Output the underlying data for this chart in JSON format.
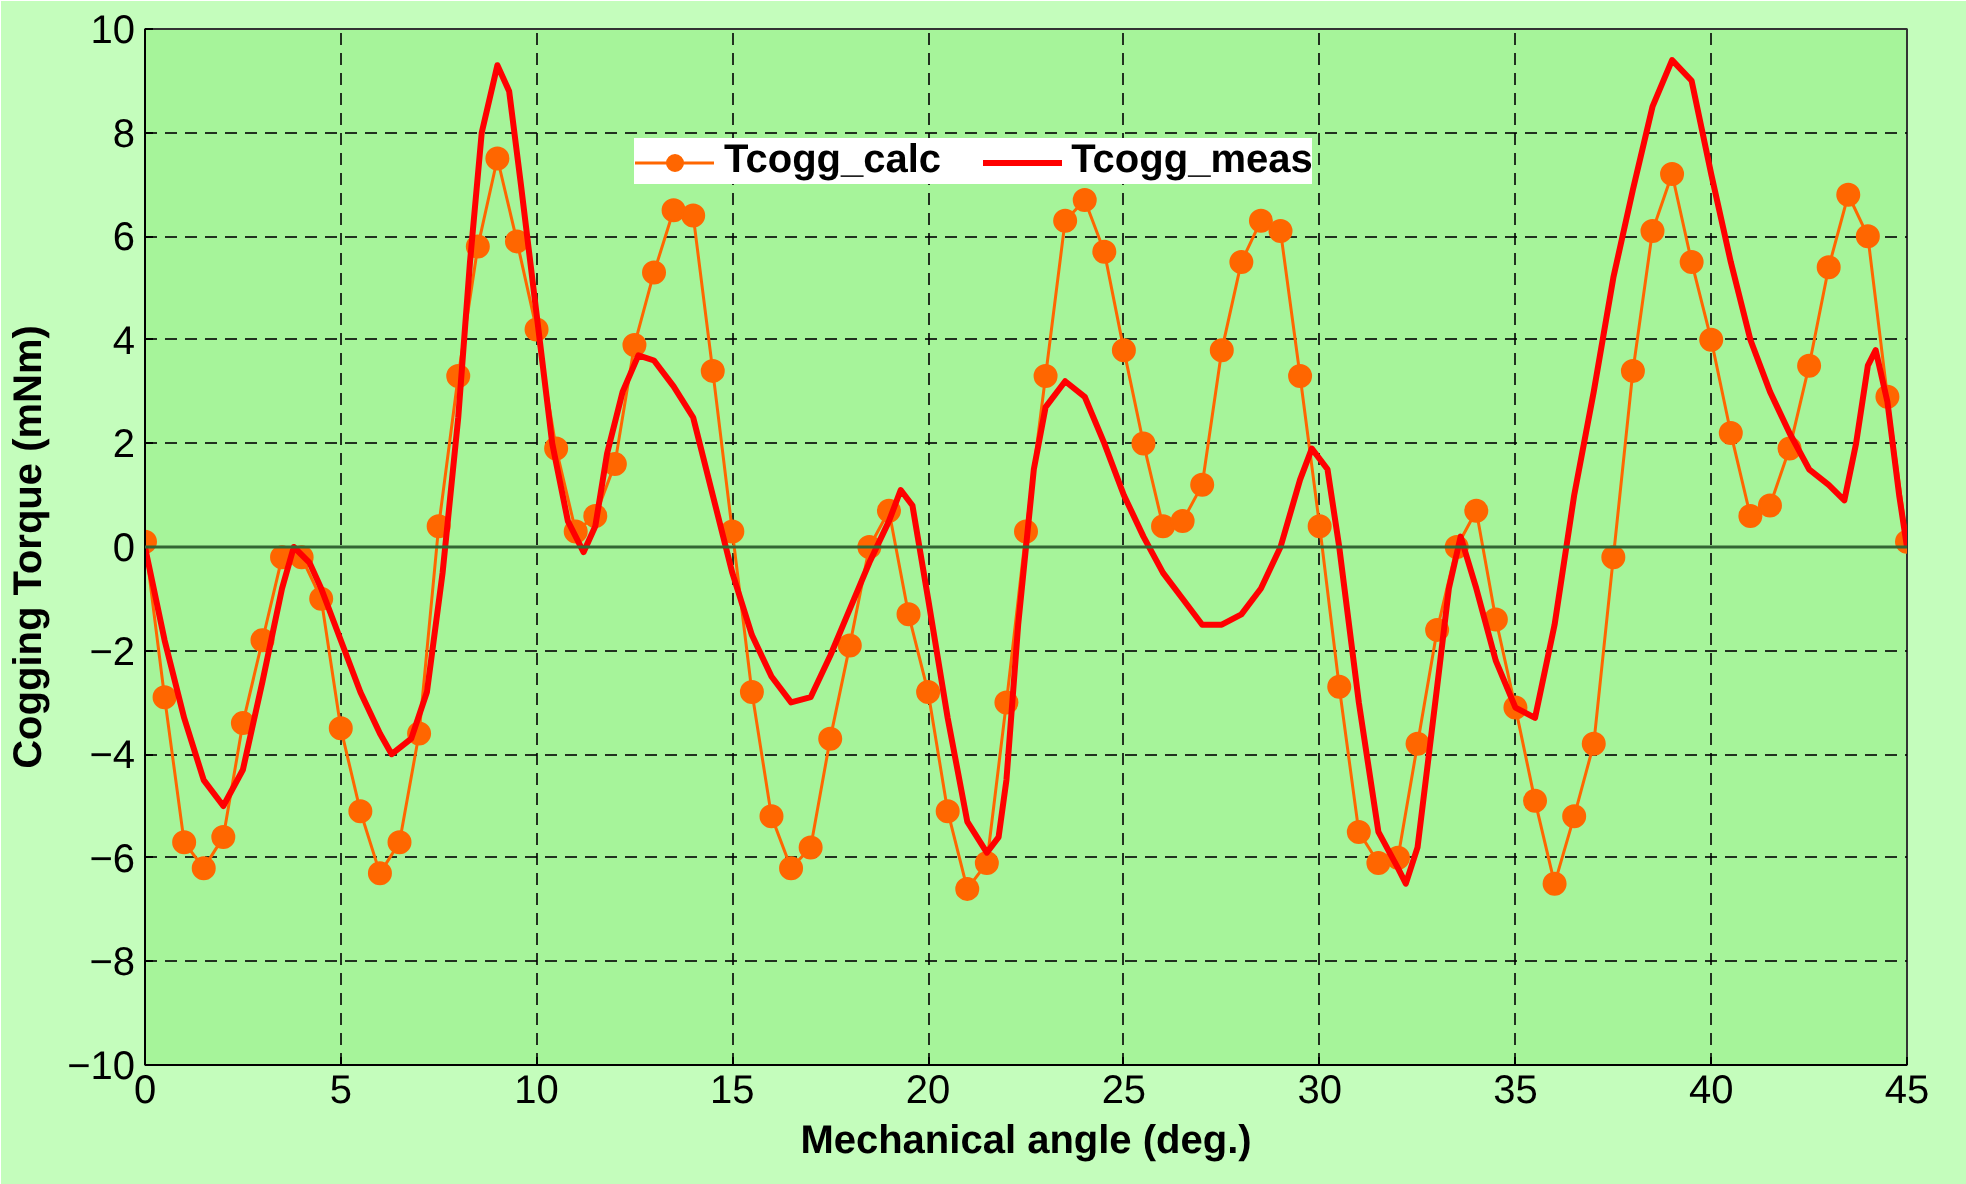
{
  "chart_data": {
    "type": "line",
    "xlabel": "Mechanical angle (deg.)",
    "ylabel": "Cogging Torque (mNm)",
    "xlim": [
      0,
      45
    ],
    "xticks": [
      0,
      5,
      10,
      15,
      20,
      25,
      30,
      35,
      40,
      45
    ],
    "ylim": [
      -10,
      10
    ],
    "yticks": [
      -10,
      -8,
      -6,
      -4,
      -2,
      0,
      2,
      4,
      6,
      8,
      10
    ],
    "grid": true,
    "legend": "top right",
    "ref_lines": [
      {
        "axis": "y",
        "value": 0,
        "label": null,
        "color": "#336633",
        "line_style": "solid"
      }
    ],
    "series": [
      {
        "name": "Tcogg_calc",
        "color": "#ff6600",
        "marker": "circle",
        "line_style": "solid",
        "x": [
          0,
          0.5,
          1,
          1.5,
          2,
          2.5,
          3,
          3.5,
          4,
          4.5,
          5,
          5.5,
          6,
          6.5,
          7,
          7.5,
          8,
          8.5,
          9,
          9.5,
          10,
          10.5,
          11,
          11.5,
          12,
          12.5,
          13,
          13.5,
          14,
          14.5,
          15,
          15.5,
          16,
          16.5,
          17,
          17.5,
          18,
          18.5,
          19,
          19.5,
          20,
          20.5,
          21,
          21.5,
          22,
          22.5,
          23,
          23.5,
          24,
          24.5,
          25,
          25.5,
          26,
          26.5,
          27,
          27.5,
          28,
          28.5,
          29,
          29.5,
          30,
          30.5,
          31,
          31.5,
          32,
          32.5,
          33,
          33.5,
          34,
          34.5,
          35,
          35.5,
          36,
          36.5,
          37,
          37.5,
          38,
          38.5,
          39,
          39.5,
          40,
          40.5,
          41,
          41.5,
          42,
          42.5,
          43,
          43.5,
          44,
          44.5,
          45
        ],
        "values": [
          0.1,
          -2.9,
          -5.7,
          -6.2,
          -5.6,
          -3.4,
          -1.8,
          -0.2,
          -0.2,
          -1.0,
          -3.5,
          -5.1,
          -6.3,
          -5.7,
          -3.6,
          0.4,
          3.3,
          5.8,
          7.5,
          5.9,
          4.2,
          1.9,
          0.3,
          0.6,
          1.6,
          3.9,
          5.3,
          6.5,
          6.4,
          3.4,
          0.3,
          -2.8,
          -5.2,
          -6.2,
          -5.8,
          -3.7,
          -1.9,
          0.0,
          0.7,
          -1.3,
          -2.8,
          -5.1,
          -6.6,
          -6.1,
          -3.0,
          0.3,
          3.3,
          6.3,
          6.7,
          5.7,
          3.8,
          2.0,
          0.4,
          0.5,
          1.2,
          3.8,
          5.5,
          6.3,
          6.1,
          3.3,
          0.4,
          -2.7,
          -5.5,
          -6.1,
          -6.0,
          -3.8,
          -1.6,
          0.0,
          0.7,
          -1.4,
          -3.1,
          -4.9,
          -6.5,
          -5.2,
          -3.8,
          -0.2,
          3.4,
          6.1,
          7.2,
          5.5,
          4.0,
          2.2,
          0.6,
          0.8,
          1.9,
          3.5,
          5.4,
          6.8,
          6.0,
          2.9,
          0.1
        ]
      },
      {
        "name": "Tcogg_meas",
        "color": "#ff0000",
        "marker": "none",
        "line_style": "solid",
        "x": [
          0,
          0.5,
          1,
          1.5,
          2,
          2.5,
          3,
          3.5,
          3.8,
          4.2,
          4.5,
          5,
          5.5,
          6,
          6.3,
          6.8,
          7.2,
          7.6,
          8,
          8.3,
          8.6,
          9,
          9.3,
          9.6,
          10,
          10.4,
          10.8,
          11.2,
          11.5,
          11.8,
          12.2,
          12.6,
          13,
          13.5,
          14,
          14.5,
          15,
          15.5,
          16,
          16.5,
          17,
          17.5,
          18,
          18.5,
          19,
          19.3,
          19.6,
          20,
          20.5,
          21,
          21.5,
          21.8,
          22,
          22.3,
          22.7,
          23,
          23.5,
          24,
          24.5,
          25,
          25.5,
          26,
          26.5,
          27,
          27.5,
          28,
          28.5,
          29,
          29.5,
          29.8,
          30.2,
          30.5,
          31,
          31.5,
          32,
          32.2,
          32.5,
          33,
          33.3,
          33.6,
          34,
          34.5,
          35,
          35.5,
          36,
          36.5,
          37,
          37.5,
          38,
          38.5,
          39,
          39.5,
          40,
          40.5,
          41,
          41.5,
          42,
          42.5,
          43,
          43.4,
          43.7,
          44,
          44.2,
          44.5,
          44.8,
          45
        ],
        "values": [
          0,
          -1.8,
          -3.3,
          -4.5,
          -5.0,
          -4.3,
          -2.6,
          -0.8,
          0.0,
          -0.3,
          -0.8,
          -1.8,
          -2.8,
          -3.6,
          -4.0,
          -3.7,
          -2.8,
          -0.5,
          2.5,
          5.5,
          8.0,
          9.3,
          8.8,
          7.0,
          4.5,
          2.0,
          0.5,
          -0.1,
          0.4,
          1.8,
          3.0,
          3.7,
          3.6,
          3.1,
          2.5,
          1.0,
          -0.5,
          -1.7,
          -2.5,
          -3.0,
          -2.9,
          -2.1,
          -1.2,
          -0.3,
          0.5,
          1.1,
          0.8,
          -1.0,
          -3.3,
          -5.3,
          -5.9,
          -5.6,
          -4.5,
          -1.5,
          1.5,
          2.7,
          3.2,
          2.9,
          2.0,
          1.0,
          0.2,
          -0.5,
          -1.0,
          -1.5,
          -1.5,
          -1.3,
          -0.8,
          0.0,
          1.3,
          1.9,
          1.5,
          0.0,
          -3.0,
          -5.5,
          -6.2,
          -6.5,
          -5.8,
          -2.7,
          -0.8,
          0.2,
          -0.8,
          -2.2,
          -3.1,
          -3.3,
          -1.5,
          1.0,
          3.0,
          5.2,
          6.9,
          8.5,
          9.4,
          9.0,
          7.2,
          5.5,
          4.0,
          3.0,
          2.2,
          1.5,
          1.2,
          0.9,
          2.0,
          3.5,
          3.8,
          2.8,
          1.0,
          0.0
        ]
      }
    ]
  }
}
